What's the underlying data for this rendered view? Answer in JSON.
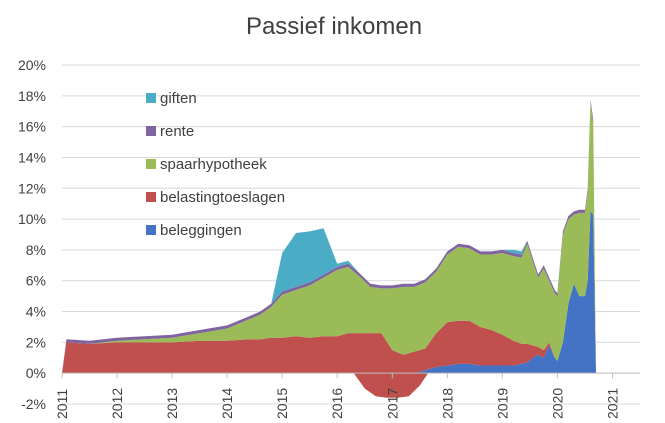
{
  "chart_data": {
    "type": "area",
    "title": "Passief inkomen",
    "xlabel": "",
    "ylabel": "",
    "xlim": [
      2011.0,
      2021.5
    ],
    "ylim": [
      -2,
      20
    ],
    "grid": true,
    "legend_position": "top-left",
    "y_ticks": [
      "-2%",
      "0%",
      "2%",
      "4%",
      "6%",
      "8%",
      "10%",
      "12%",
      "14%",
      "16%",
      "18%",
      "20%"
    ],
    "y_tick_values": [
      -2,
      0,
      2,
      4,
      6,
      8,
      10,
      12,
      14,
      16,
      18,
      20
    ],
    "x_ticks": [
      "2011",
      "2012",
      "2013",
      "2014",
      "2015",
      "2016",
      "2017",
      "2018",
      "2019",
      "2020",
      "2021"
    ],
    "x_tick_values": [
      2011,
      2012,
      2013,
      2014,
      2015,
      2016,
      2017,
      2018,
      2019,
      2020,
      2021
    ],
    "x": [
      2011.0,
      2011.08,
      2011.5,
      2012.0,
      2012.5,
      2013.0,
      2013.5,
      2014.0,
      2014.4,
      2014.6,
      2014.8,
      2015.0,
      2015.25,
      2015.5,
      2015.75,
      2016.0,
      2016.2,
      2016.4,
      2016.6,
      2016.8,
      2017.0,
      2017.2,
      2017.4,
      2017.6,
      2017.8,
      2018.0,
      2018.2,
      2018.4,
      2018.6,
      2018.8,
      2019.0,
      2019.2,
      2019.35,
      2019.45,
      2019.55,
      2019.65,
      2019.75,
      2019.85,
      2019.95,
      2020.0,
      2020.1,
      2020.2,
      2020.3,
      2020.4,
      2020.5,
      2020.55,
      2020.6,
      2020.65,
      2020.7
    ],
    "series": [
      {
        "name": "beleggingen",
        "color": "#4472C4",
        "values": [
          0,
          0,
          0,
          0,
          0,
          0,
          0,
          0,
          0,
          0,
          0,
          0,
          0,
          0,
          0,
          0,
          0,
          0,
          0,
          0,
          0,
          0,
          0,
          0.2,
          0.4,
          0.5,
          0.6,
          0.6,
          0.5,
          0.5,
          0.5,
          0.5,
          0.6,
          0.7,
          1.0,
          1.2,
          1.0,
          1.8,
          1.0,
          0.8,
          2.0,
          4.5,
          5.8,
          5.0,
          5.0,
          6.0,
          10.5,
          10.3,
          0
        ]
      },
      {
        "name": "belastingtoeslagen",
        "color": "#C0504D",
        "values": [
          0,
          2.0,
          1.9,
          2.0,
          2.0,
          2.0,
          2.1,
          2.1,
          2.2,
          2.2,
          2.3,
          2.3,
          2.4,
          2.3,
          2.4,
          2.4,
          2.6,
          2.6,
          2.6,
          2.6,
          1.5,
          1.2,
          1.4,
          1.4,
          2.2,
          2.8,
          2.8,
          2.8,
          2.5,
          2.3,
          2.0,
          1.6,
          1.3,
          1.2,
          0.8,
          0.5,
          0.5,
          0.2,
          0,
          0,
          0,
          0,
          0,
          0,
          0,
          0,
          0,
          0,
          0
        ]
      },
      {
        "name": "spaarhypotheek",
        "color": "#9BBB59",
        "values": [
          0,
          0,
          0,
          0.1,
          0.2,
          0.3,
          0.5,
          0.8,
          1.3,
          1.6,
          2.0,
          2.8,
          3.0,
          3.4,
          3.8,
          4.3,
          4.3,
          3.7,
          3.0,
          2.9,
          4.0,
          4.4,
          4.2,
          4.3,
          4.0,
          4.4,
          4.8,
          4.7,
          4.7,
          4.9,
          5.3,
          5.5,
          5.6,
          6.5,
          5.5,
          4.5,
          5.3,
          4.0,
          4.2,
          4.2,
          7.0,
          5.5,
          4.5,
          5.4,
          5.4,
          5.8,
          7.0,
          6.0,
          0
        ]
      },
      {
        "name": "rente",
        "color": "#8064A2",
        "values": [
          0,
          0.2,
          0.2,
          0.2,
          0.2,
          0.2,
          0.2,
          0.2,
          0.2,
          0.2,
          0.2,
          0.2,
          0.2,
          0.2,
          0.2,
          0.2,
          0.2,
          0.2,
          0.2,
          0.2,
          0.2,
          0.2,
          0.2,
          0.2,
          0.2,
          0.2,
          0.2,
          0.2,
          0.2,
          0.2,
          0.2,
          0.2,
          0.2,
          0.2,
          0.2,
          0.2,
          0.2,
          0.2,
          0.2,
          0.2,
          0.2,
          0.2,
          0.2,
          0.2,
          0.2,
          0.2,
          0.2,
          0.2,
          0
        ]
      },
      {
        "name": "giften",
        "color": "#4BACC6",
        "values": [
          0,
          0,
          0,
          0,
          0,
          0,
          0,
          0,
          0,
          0,
          0,
          2.5,
          3.5,
          3.3,
          3.0,
          0.2,
          0.2,
          0,
          0,
          0,
          0,
          0,
          0,
          0,
          0,
          0,
          0,
          0,
          0,
          0,
          0,
          0.2,
          0.2,
          0,
          0,
          0,
          0,
          0,
          0,
          0,
          0,
          0,
          0,
          0,
          0,
          0,
          0,
          0,
          0
        ]
      }
    ],
    "negative_series": {
      "name": "belastingtoeslagen",
      "color": "#C0504D",
      "x": [
        2016.3,
        2016.5,
        2016.7,
        2016.9,
        2017.1,
        2017.3,
        2017.5,
        2017.65
      ],
      "values": [
        0,
        -1.0,
        -1.5,
        -1.6,
        -1.6,
        -1.5,
        -0.8,
        0
      ]
    },
    "legend": [
      {
        "label": "giften",
        "color": "#4BACC6"
      },
      {
        "label": "rente",
        "color": "#8064A2"
      },
      {
        "label": "spaarhypotheek",
        "color": "#9BBB59"
      },
      {
        "label": "belastingtoeslagen",
        "color": "#C0504D"
      },
      {
        "label": "beleggingen",
        "color": "#4472C4"
      }
    ]
  }
}
